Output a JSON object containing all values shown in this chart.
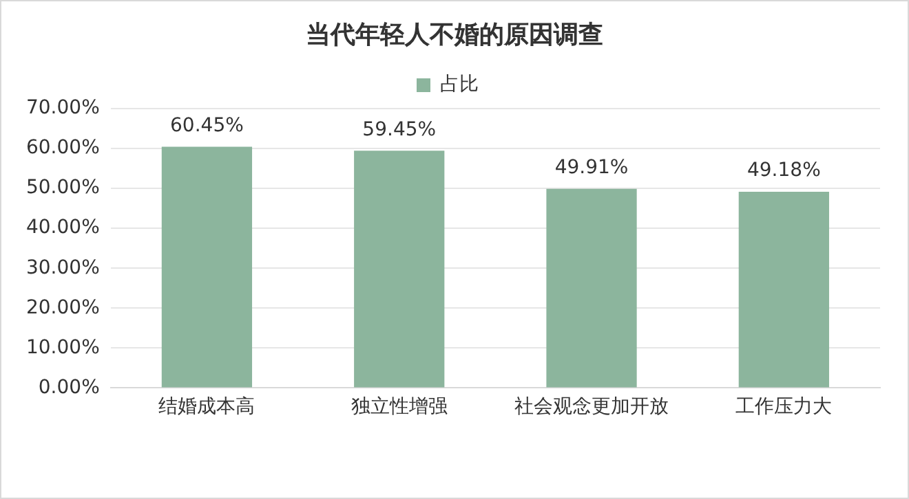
{
  "chart_data": {
    "type": "bar",
    "title": "当代年轻人不婚的原因调查",
    "categories": [
      "结婚成本高",
      "独立性增强",
      "社会观念更加开放",
      "工作压力大"
    ],
    "series": [
      {
        "name": "占比",
        "color": "#8cb59d",
        "values": [
          60.45,
          59.45,
          49.91,
          49.18
        ]
      }
    ],
    "value_labels": [
      "60.45%",
      "59.45%",
      "49.91%",
      "49.18%"
    ],
    "ylim": [
      0,
      70
    ],
    "yticks": [
      {
        "value": 0,
        "label": "0.00%"
      },
      {
        "value": 10,
        "label": "10.00%"
      },
      {
        "value": 20,
        "label": "20.00%"
      },
      {
        "value": 30,
        "label": "30.00%"
      },
      {
        "value": 40,
        "label": "40.00%"
      },
      {
        "value": 50,
        "label": "50.00%"
      },
      {
        "value": 60,
        "label": "60.00%"
      },
      {
        "value": 70,
        "label": "70.00%"
      }
    ],
    "grid": "y",
    "legend": "top"
  }
}
